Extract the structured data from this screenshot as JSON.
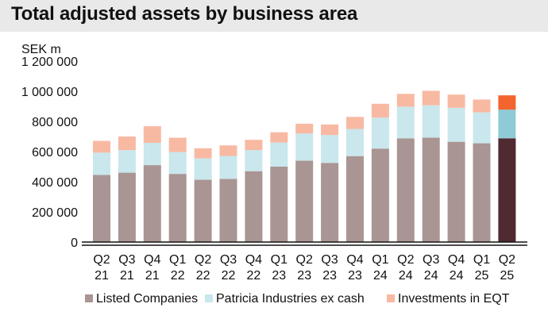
{
  "chart_data": {
    "type": "bar",
    "stacked": true,
    "title": "Total adjusted assets by business area",
    "ylabel": "SEK m",
    "ylim": [
      0,
      1200000
    ],
    "yticks": [
      0,
      200000,
      400000,
      600000,
      800000,
      1000000,
      1200000
    ],
    "ytick_labels": [
      "0",
      "200 000",
      "400 000",
      "600 000",
      "800 000",
      "1 000 000",
      "1 200 000"
    ],
    "grid": false,
    "legend_position": "bottom",
    "categories": [
      [
        "Q2",
        "21"
      ],
      [
        "Q3",
        "21"
      ],
      [
        "Q4",
        "21"
      ],
      [
        "Q1",
        "22"
      ],
      [
        "Q2",
        "22"
      ],
      [
        "Q3",
        "22"
      ],
      [
        "Q4",
        "22"
      ],
      [
        "Q1",
        "23"
      ],
      [
        "Q2",
        "23"
      ],
      [
        "Q3",
        "23"
      ],
      [
        "Q4",
        "23"
      ],
      [
        "Q1",
        "24"
      ],
      [
        "Q2",
        "24"
      ],
      [
        "Q3",
        "24"
      ],
      [
        "Q4",
        "24"
      ],
      [
        "Q1",
        "25"
      ],
      [
        "Q2",
        "25"
      ]
    ],
    "series": [
      {
        "name": "Listed Companies",
        "color": "#a99593",
        "highlight_color": "#4f2a31",
        "values": [
          445000,
          460000,
          510000,
          452000,
          413000,
          419000,
          470000,
          500000,
          540000,
          525000,
          570000,
          620000,
          688000,
          692000,
          665000,
          655000,
          688000
        ]
      },
      {
        "name": "Patricia Industries ex cash",
        "color": "#c9e7ec",
        "highlight_color": "#8ecbd6",
        "values": [
          148000,
          150000,
          148000,
          145000,
          142000,
          152000,
          140000,
          160000,
          180000,
          185000,
          180000,
          205000,
          210000,
          215000,
          225000,
          205000,
          190000
        ]
      },
      {
        "name": "Investments in EQT",
        "color": "#f8b9a3",
        "highlight_color": "#f4642f",
        "values": [
          78000,
          90000,
          110000,
          95000,
          67000,
          70000,
          68000,
          68000,
          65000,
          70000,
          80000,
          92000,
          85000,
          96000,
          88000,
          85000,
          95000
        ]
      }
    ]
  }
}
